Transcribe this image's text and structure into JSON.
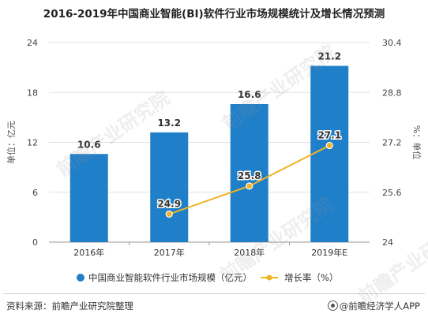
{
  "title": "2016-2019年中国商业智能(BI)软件行业市场规模统计及增长情况预测",
  "source": "资料来源：前瞻产业研究院整理",
  "brand": "@前瞻经济学人APP",
  "watermark": "前瞻产业研究院",
  "colors": {
    "bar": "#1f7fc9",
    "line": "#f0b323",
    "axis": "#999999",
    "grid": "#e2e2e2"
  },
  "chart_data": {
    "type": "bar+line",
    "categories": [
      "2016年",
      "2017年",
      "2018年",
      "2019年E"
    ],
    "y_left": {
      "label": "单位：亿元",
      "min": 0,
      "max": 24,
      "ticks": [
        "0",
        "6",
        "12",
        "18",
        "24"
      ]
    },
    "y_right": {
      "label": "%：单位",
      "min": 24,
      "max": 30.4,
      "ticks": [
        "24",
        "25.6",
        "27.2",
        "28.8",
        "30.4"
      ]
    },
    "series": [
      {
        "name": "中国商业智能软件行业市场规模（亿元）",
        "type": "bar",
        "axis": "left",
        "values": [
          10.6,
          13.2,
          16.6,
          21.2
        ],
        "labels": [
          "10.6",
          "13.2",
          "16.6",
          "21.2"
        ]
      },
      {
        "name": "增长率（%）",
        "type": "line",
        "axis": "right",
        "values": [
          null,
          24.9,
          25.8,
          27.1
        ],
        "labels": [
          "",
          "24.9",
          "25.8",
          "27.1"
        ]
      }
    ],
    "grid": true,
    "legend": "bottom"
  }
}
